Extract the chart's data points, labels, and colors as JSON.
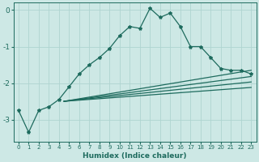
{
  "xlabel": "Humidex (Indice chaleur)",
  "background_color": "#cde8e5",
  "grid_color": "#afd4d0",
  "line_color": "#1e6b5e",
  "xlim": [
    -0.5,
    23.5
  ],
  "ylim": [
    -3.6,
    0.2
  ],
  "yticks": [
    0,
    -1,
    -2,
    -3
  ],
  "xticks": [
    0,
    1,
    2,
    3,
    4,
    5,
    6,
    7,
    8,
    9,
    10,
    11,
    12,
    13,
    14,
    15,
    16,
    17,
    18,
    19,
    20,
    21,
    22,
    23
  ],
  "main_line_x": [
    0,
    1,
    2,
    3,
    4,
    5,
    6,
    7,
    8,
    9,
    10,
    11,
    12,
    13,
    14,
    15,
    16,
    17,
    18,
    19,
    20,
    21,
    22,
    23
  ],
  "main_line_y": [
    -2.75,
    -3.35,
    -2.75,
    -2.65,
    -2.45,
    -2.1,
    -1.75,
    -1.5,
    -1.3,
    -1.05,
    -0.7,
    -0.45,
    -0.5,
    0.05,
    -0.2,
    -0.08,
    -0.45,
    -1.0,
    -1.0,
    -1.3,
    -1.6,
    -1.65,
    -1.65,
    -1.75
  ],
  "straight_lines": [
    {
      "x0": 4.5,
      "y0": -2.5,
      "x1": 23,
      "y1": -1.65
    },
    {
      "x0": 4.5,
      "y0": -2.5,
      "x1": 23,
      "y1": -1.82
    },
    {
      "x0": 4.5,
      "y0": -2.5,
      "x1": 23,
      "y1": -1.97
    },
    {
      "x0": 4.5,
      "y0": -2.5,
      "x1": 23,
      "y1": -2.12
    }
  ]
}
